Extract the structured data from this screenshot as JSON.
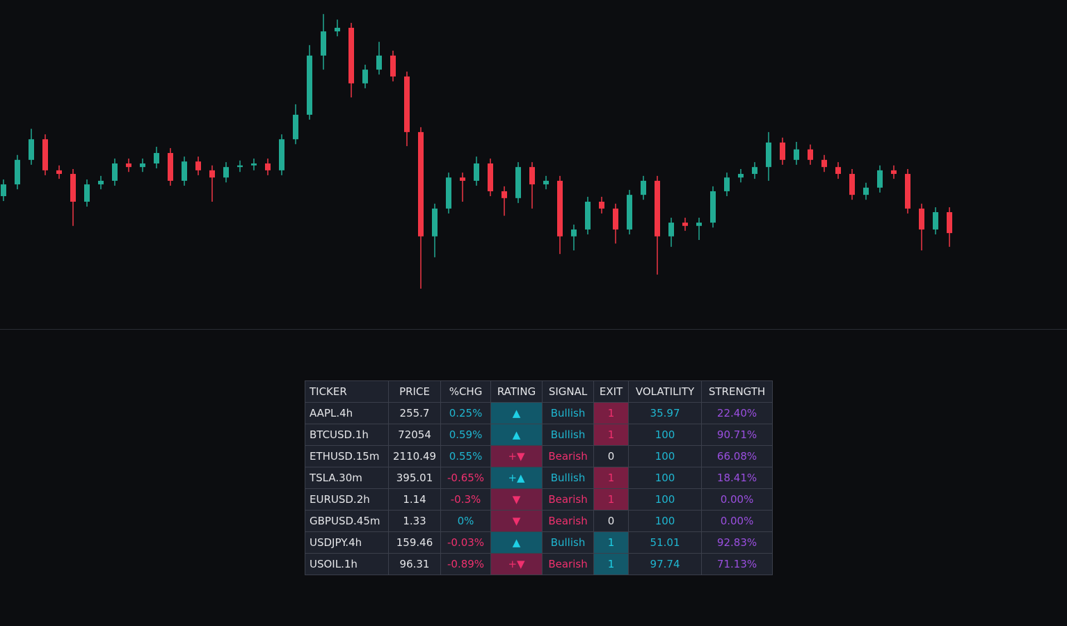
{
  "chart_data": {
    "type": "candlestick",
    "up_color": "#22ab94",
    "down_color": "#f23645",
    "ylim": [
      0,
      100
    ],
    "open": [
      40,
      43.6,
      51.1,
      57.4,
      47.9,
      46.8,
      38.3,
      43.6,
      44.7,
      50,
      48.9,
      50,
      53.2,
      44.7,
      50.6,
      47.9,
      45.7,
      48.9,
      49.4,
      50,
      47.9,
      57.4,
      64.9,
      83,
      90.4,
      91.5,
      74.5,
      78.7,
      83,
      76.6,
      59.6,
      27.7,
      36.2,
      45.7,
      44.7,
      50,
      41.5,
      39.4,
      48.9,
      43.6,
      44.7,
      27.7,
      29.8,
      38.3,
      36.2,
      29.8,
      40.4,
      44.7,
      27.7,
      31.9,
      30.9,
      31.9,
      41.5,
      45.7,
      46.8,
      48.9,
      56.4,
      51.1,
      54.3,
      51.1,
      48.9,
      46.8,
      40.4,
      42.6,
      47.9,
      46.8,
      36.2,
      29.8,
      35.1
    ],
    "high": [
      45.1,
      52.6,
      60.6,
      58.9,
      49.4,
      48.3,
      45.1,
      46.2,
      51.5,
      51.5,
      51.5,
      55.1,
      54.7,
      52.1,
      52.1,
      49.4,
      50.4,
      50.9,
      51.5,
      51.5,
      58.9,
      68.1,
      86.2,
      95.7,
      94,
      93,
      80.2,
      87.2,
      84.5,
      78.1,
      61.1,
      37.7,
      47.2,
      47.2,
      52.1,
      51.5,
      43,
      50.4,
      50.4,
      46.2,
      46.2,
      31.3,
      39.8,
      39.8,
      37.7,
      41.9,
      46.2,
      46.2,
      33.4,
      33.4,
      33.4,
      43,
      47.2,
      48.3,
      50.4,
      59.6,
      57.9,
      56.6,
      55.8,
      52.6,
      50.4,
      48.3,
      44.1,
      49.4,
      49.4,
      48.3,
      37.7,
      36.6,
      36.6
    ],
    "low": [
      38.5,
      42.1,
      49.6,
      46.4,
      45.3,
      30.9,
      36.8,
      42.1,
      43.2,
      47.4,
      47.4,
      48.5,
      43.2,
      43.2,
      46.4,
      38.3,
      44.2,
      47.4,
      47.9,
      46.4,
      46.4,
      55.9,
      63.4,
      78.7,
      88.9,
      70.2,
      73,
      77.2,
      75.1,
      55.3,
      11.7,
      21.3,
      34.7,
      38.3,
      43.2,
      40,
      34,
      37.9,
      36.2,
      42.1,
      22.3,
      23.4,
      28.3,
      34.7,
      25.5,
      28.3,
      38.9,
      16,
      24.5,
      29.4,
      26.6,
      30.4,
      40,
      44.2,
      45.3,
      44.7,
      49.6,
      49.6,
      49.6,
      47.4,
      45.3,
      38.9,
      38.9,
      41.1,
      45.3,
      34.7,
      23.4,
      28.3,
      24.5
    ],
    "close": [
      43.6,
      51.1,
      57.4,
      47.9,
      46.8,
      38.3,
      43.6,
      44.7,
      50,
      48.9,
      50,
      53.2,
      44.7,
      50.6,
      47.9,
      45.7,
      48.9,
      49.4,
      50,
      47.9,
      57.4,
      64.9,
      83,
      90.4,
      91.5,
      74.5,
      78.7,
      83,
      76.6,
      59.6,
      27.7,
      36.2,
      45.7,
      44.7,
      50,
      41.5,
      39.4,
      48.9,
      43.6,
      44.7,
      27.7,
      29.8,
      38.3,
      36.2,
      29.8,
      40.4,
      44.7,
      27.7,
      31.9,
      30.9,
      31.9,
      41.5,
      45.7,
      46.8,
      48.9,
      56.4,
      51.1,
      54.3,
      51.1,
      48.9,
      46.8,
      40.4,
      42.6,
      47.9,
      46.8,
      36.2,
      29.8,
      35.1,
      28.7
    ]
  },
  "table": {
    "headers": [
      "TICKER",
      "PRICE",
      "%CHG",
      "RATING",
      "SIGNAL",
      "EXIT",
      "VOLATILITY",
      "STRENGTH"
    ],
    "rows": [
      [
        "AAPL.4h",
        "255.7",
        "0.25%",
        "▲",
        "Bullish",
        "1",
        "35.97",
        "22.40%"
      ],
      [
        "BTCUSD.1h",
        "72054",
        "0.59%",
        "▲",
        "Bullish",
        "1",
        "100",
        "90.71%"
      ],
      [
        "ETHUSD.15m",
        "2110.49",
        "0.55%",
        "+▼",
        "Bearish",
        "0",
        "100",
        "66.08%"
      ],
      [
        "TSLA.30m",
        "395.01",
        "-0.65%",
        "+▲",
        "Bullish",
        "1",
        "100",
        "18.41%"
      ],
      [
        "EURUSD.2h",
        "1.14",
        "-0.3%",
        "▼",
        "Bearish",
        "1",
        "100",
        "0.00%"
      ],
      [
        "GBPUSD.45m",
        "1.33",
        "0%",
        "▼",
        "Bearish",
        "0",
        "100",
        "0.00%"
      ],
      [
        "USDJPY.4h",
        "159.46",
        "-0.03%",
        "▲",
        "Bullish",
        "1",
        "51.01",
        "92.83%"
      ],
      [
        "USOIL.1h",
        "96.31",
        "-0.89%",
        "+▼",
        "Bearish",
        "1",
        "97.74",
        "71.13%"
      ]
    ],
    "exit_background": [
      "#7a1e42",
      "#7a1e42",
      null,
      "#7a1e42",
      "#7a1e42",
      null,
      "#13596a",
      "#13596a"
    ]
  }
}
